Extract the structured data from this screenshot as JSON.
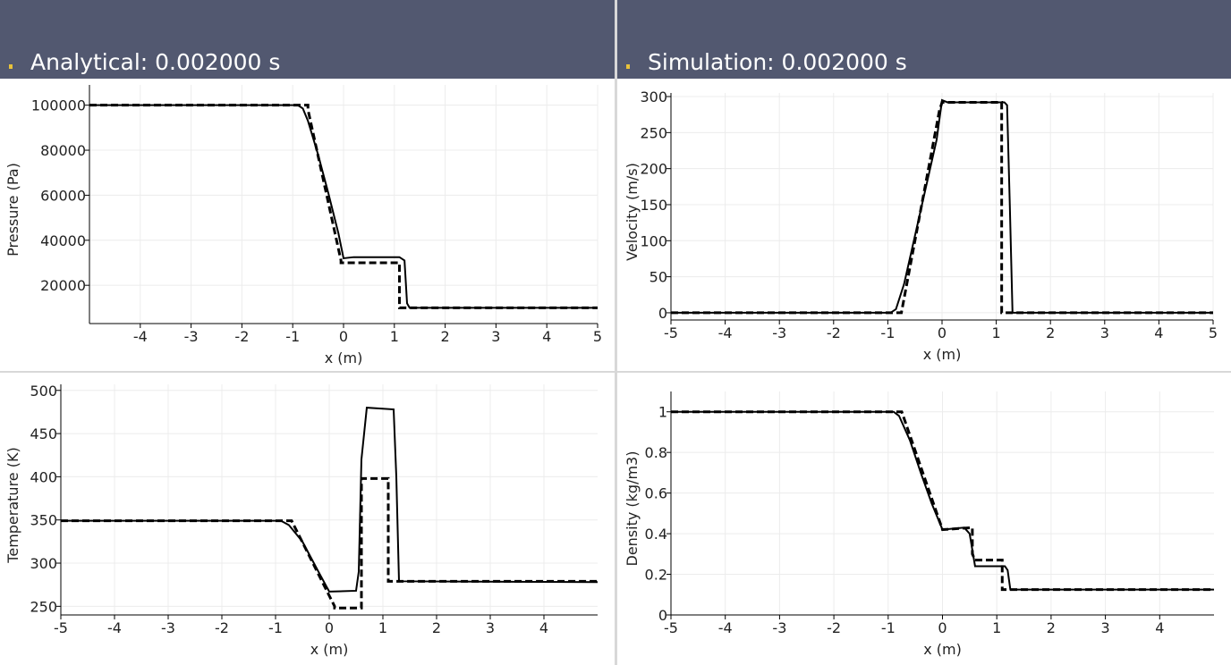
{
  "headers": [
    "Analytical: 0.002000 s",
    "Simulation: 0.002000 s"
  ],
  "chart_data": [
    {
      "type": "line",
      "x_label": "x (m)",
      "y_label": "Pressure (Pa)",
      "xlim": [
        -5,
        5
      ],
      "ylim": [
        3000,
        109000
      ],
      "xticks": [
        -4,
        -3,
        -2,
        -1,
        0,
        1,
        2,
        3,
        4,
        5
      ],
      "yticks": [
        20000,
        40000,
        60000,
        80000,
        100000
      ],
      "grid": true,
      "series": [
        {
          "color": "#000000",
          "dash": false,
          "x": [
            -5,
            -0.9,
            -0.8,
            -0.7,
            -0.5,
            -0.3,
            -0.1,
            0,
            0.2,
            1.1,
            1.2,
            1.25,
            1.3,
            5
          ],
          "values": [
            100000,
            100000,
            98500,
            93000,
            78000,
            61000,
            43000,
            32000,
            32500,
            32500,
            31000,
            12000,
            10000,
            10000
          ]
        },
        {
          "color": "#000000",
          "dash": true,
          "x": [
            -5,
            -0.7,
            -0.7,
            -0.05,
            -0.05,
            1.1,
            1.1,
            5
          ],
          "values": [
            100000,
            100000,
            98000,
            31000,
            30000,
            30000,
            10000,
            10000
          ]
        }
      ]
    },
    {
      "type": "line",
      "x_label": "x (m)",
      "y_label": "Velocity (m/s)",
      "xlim": [
        -5,
        5
      ],
      "ylim": [
        -10,
        305
      ],
      "xticks": [
        -5,
        -4,
        -3,
        -2,
        -1,
        0,
        1,
        2,
        3,
        4,
        5
      ],
      "yticks": [
        0,
        50,
        100,
        150,
        200,
        250,
        300
      ],
      "grid": true,
      "series": [
        {
          "color": "#000000",
          "dash": false,
          "x": [
            -5,
            -0.95,
            -0.85,
            -0.7,
            -0.4,
            -0.1,
            0,
            0.1,
            1.15,
            1.2,
            1.25,
            1.3,
            5
          ],
          "values": [
            0,
            0,
            5,
            40,
            140,
            240,
            295,
            292,
            292,
            288,
            150,
            0,
            0
          ]
        },
        {
          "color": "#000000",
          "dash": true,
          "x": [
            -5,
            -0.75,
            -0.05,
            0,
            1.1,
            1.1,
            5
          ],
          "values": [
            0,
            0,
            280,
            292,
            292,
            0,
            0
          ]
        }
      ]
    },
    {
      "type": "line",
      "x_label": "x (m)",
      "y_label": "Temperature (K)",
      "xlim": [
        -5,
        5
      ],
      "ylim": [
        240,
        507
      ],
      "xticks": [
        -5,
        -4,
        -3,
        -2,
        -1,
        0,
        1,
        2,
        3,
        4
      ],
      "yticks": [
        250,
        300,
        350,
        400,
        450,
        500
      ],
      "grid": true,
      "series": [
        {
          "color": "#000000",
          "dash": false,
          "x": [
            -5,
            -0.9,
            -0.75,
            -0.5,
            -0.2,
            0,
            0.5,
            0.55,
            0.6,
            0.7,
            1.2,
            1.25,
            1.3,
            5
          ],
          "values": [
            349,
            349,
            344,
            325,
            290,
            267,
            268,
            290,
            420,
            480,
            478,
            400,
            279,
            278
          ]
        },
        {
          "color": "#000000",
          "dash": true,
          "x": [
            -5,
            -0.7,
            0.1,
            0.1,
            0.6,
            0.6,
            1.1,
            1.1,
            5
          ],
          "values": [
            349,
            349,
            250,
            248,
            248,
            398,
            398,
            279,
            279
          ]
        }
      ]
    },
    {
      "type": "line",
      "x_label": "x (m)",
      "y_label": "Density (kg/m3)",
      "xlim": [
        -5,
        5
      ],
      "ylim": [
        0,
        1.1
      ],
      "xticks": [
        -5,
        -4,
        -3,
        -2,
        -1,
        0,
        1,
        2,
        3,
        4
      ],
      "yticks": [
        0,
        0.2,
        0.4,
        0.6,
        0.8,
        1
      ],
      "grid": true,
      "series": [
        {
          "color": "#000000",
          "dash": false,
          "x": [
            -5,
            -0.9,
            -0.8,
            -0.6,
            -0.4,
            -0.2,
            0,
            0.4,
            0.5,
            0.6,
            1.15,
            1.2,
            1.25,
            5
          ],
          "values": [
            1,
            1,
            0.98,
            0.86,
            0.7,
            0.55,
            0.42,
            0.43,
            0.4,
            0.24,
            0.24,
            0.22,
            0.125,
            0.125
          ]
        },
        {
          "color": "#000000",
          "dash": true,
          "x": [
            -5,
            -0.75,
            0,
            0.55,
            0.55,
            0.6,
            1.1,
            1.1,
            5
          ],
          "values": [
            1,
            1,
            0.42,
            0.43,
            0.3,
            0.27,
            0.27,
            0.125,
            0.125
          ]
        }
      ]
    }
  ]
}
